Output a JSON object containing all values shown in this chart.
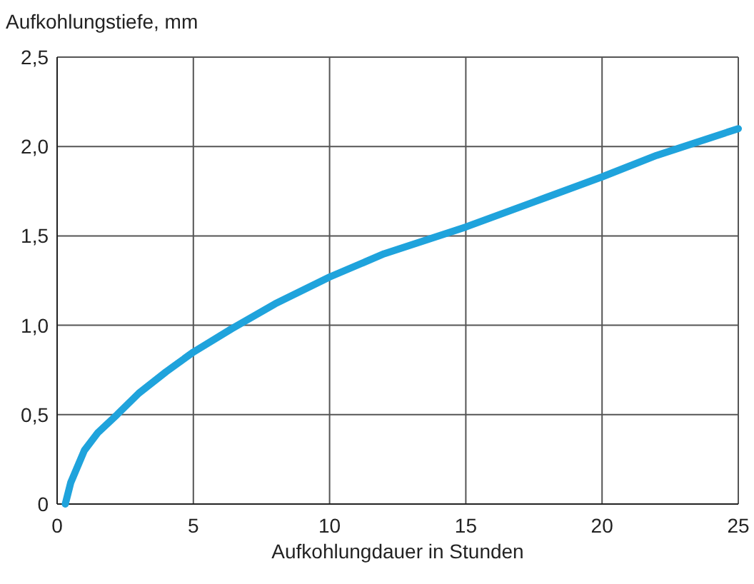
{
  "chart_data": {
    "type": "line",
    "ylabel": "Aufkohlungstiefe, mm",
    "xlabel": "Aufkohlungdauer in Stunden",
    "xlim": [
      0,
      25
    ],
    "xticks": [
      0,
      5,
      10,
      15,
      20,
      25
    ],
    "ylim": [
      0,
      2.5
    ],
    "yticks": [
      0,
      {
        "value": 0.5,
        "label": "0,5"
      },
      {
        "value": 1,
        "label": "1,0"
      },
      {
        "value": 1.5,
        "label": "1,5"
      },
      {
        "value": 2,
        "label": "2,0"
      },
      {
        "value": 2.5,
        "label": "2,5"
      }
    ],
    "grid": true,
    "series": [
      {
        "color": "#1fa3dc",
        "x": [
          0.3,
          0.5,
          1,
          1.5,
          2.2,
          3,
          4,
          5,
          6.4,
          8,
          10,
          12,
          13.6,
          15,
          17.5,
          20,
          22,
          25
        ],
        "values": [
          0,
          0.12,
          0.3,
          0.4,
          0.5,
          0.62,
          0.74,
          0.85,
          0.98,
          1.12,
          1.27,
          1.4,
          1.48,
          1.55,
          1.69,
          1.83,
          1.95,
          2.1
        ]
      }
    ]
  }
}
